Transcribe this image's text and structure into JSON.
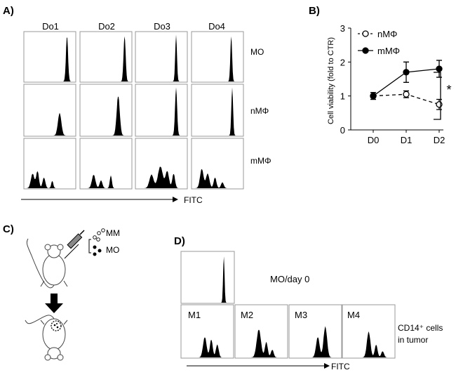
{
  "panels": {
    "a": {
      "label": "A)",
      "columns": [
        "Do1",
        "Do2",
        "Do3",
        "Do4"
      ],
      "rows": [
        "MO",
        "nMΦ",
        "mMΦ"
      ],
      "axis_label": "FITC"
    },
    "b": {
      "label": "B)",
      "significance": "*"
    },
    "c": {
      "label": "C)",
      "injection_labels": [
        "MM",
        "MO"
      ]
    },
    "d": {
      "label": "D)",
      "top_label": "MO/day 0",
      "boxes": [
        "M1",
        "M2",
        "M3",
        "M4"
      ],
      "cell_label_line1": "CD14⁺ cells",
      "cell_label_line2": "in tumor",
      "axis_label": "FITC"
    }
  },
  "chart_data": {
    "type": "line",
    "categories": [
      "D0",
      "D1",
      "D2"
    ],
    "ylabel": "Cell viability (fold to CTR)",
    "xlabel": "",
    "ylim": [
      0,
      3
    ],
    "yticks": [
      0,
      1,
      2,
      3
    ],
    "legend_position": "top-right",
    "series": [
      {
        "name": "nMΦ",
        "values": [
          1.0,
          1.05,
          0.75
        ],
        "errors": [
          0.1,
          0.1,
          0.15
        ],
        "style": "dashed",
        "marker": "open-circle"
      },
      {
        "name": "mMΦ",
        "values": [
          1.0,
          1.7,
          1.8
        ],
        "errors": [
          0.1,
          0.3,
          0.25
        ],
        "style": "solid",
        "marker": "filled-circle"
      }
    ]
  }
}
